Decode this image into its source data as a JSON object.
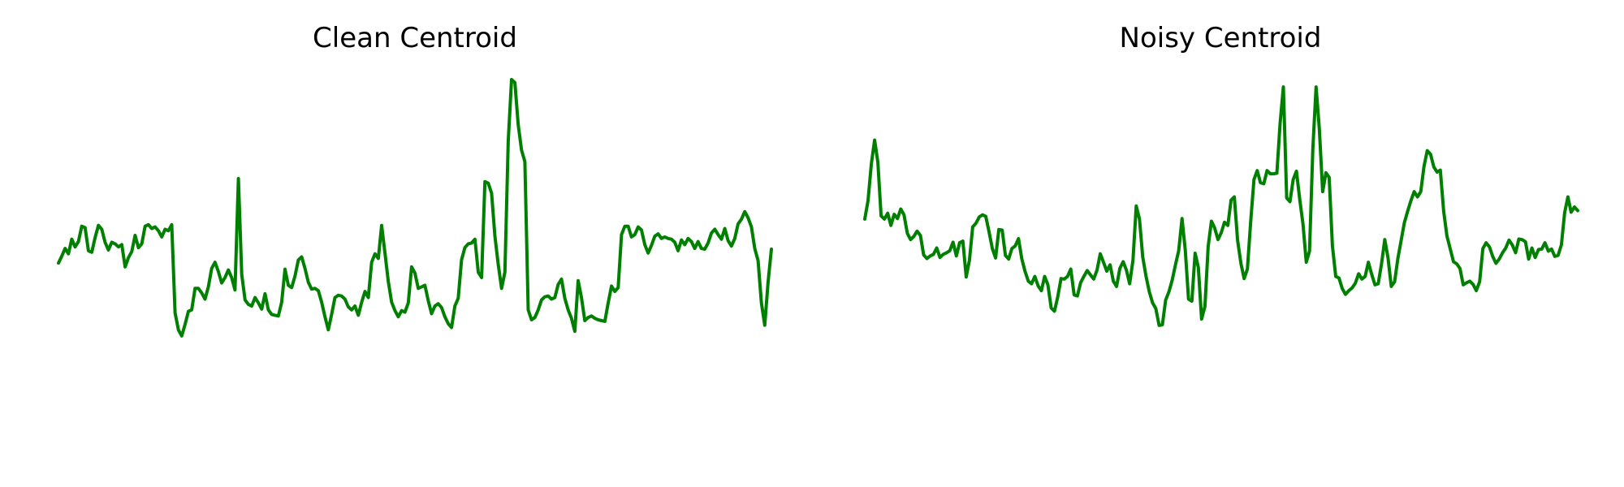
{
  "chart_data": [
    {
      "type": "line",
      "title": "Clean Centroid",
      "xlabel": "",
      "ylabel": "",
      "axes_visible": false,
      "grid": false,
      "color": "#008000",
      "ylim": [
        -0.29,
        0.19
      ],
      "series": [
        {
          "values": [
            -0.049,
            -0.04,
            -0.03,
            -0.037,
            -0.018,
            -0.028,
            -0.021,
            -0.001,
            -0.003,
            -0.033,
            -0.035,
            -0.016,
            0.0,
            -0.005,
            -0.022,
            -0.032,
            -0.022,
            -0.024,
            -0.028,
            -0.025,
            -0.054,
            -0.042,
            -0.034,
            -0.013,
            -0.029,
            -0.024,
            -0.001,
            0.001,
            -0.004,
            -0.002,
            -0.007,
            -0.015,
            -0.005,
            -0.007,
            0.001,
            -0.114,
            -0.136,
            -0.144,
            -0.129,
            -0.112,
            -0.11,
            -0.082,
            -0.082,
            -0.088,
            -0.096,
            -0.08,
            -0.056,
            -0.048,
            -0.06,
            -0.075,
            -0.068,
            -0.058,
            -0.068,
            -0.084,
            0.061,
            -0.064,
            -0.097,
            -0.103,
            -0.105,
            -0.094,
            -0.101,
            -0.109,
            -0.089,
            -0.11,
            -0.116,
            -0.117,
            -0.118,
            -0.1,
            -0.057,
            -0.078,
            -0.081,
            -0.066,
            -0.045,
            -0.041,
            -0.056,
            -0.074,
            -0.083,
            -0.082,
            -0.085,
            -0.1,
            -0.119,
            -0.136,
            -0.116,
            -0.094,
            -0.091,
            -0.092,
            -0.096,
            -0.106,
            -0.11,
            -0.105,
            -0.117,
            -0.1,
            -0.086,
            -0.094,
            -0.048,
            -0.037,
            -0.043,
            0.0,
            -0.036,
            -0.073,
            -0.1,
            -0.111,
            -0.119,
            -0.111,
            -0.113,
            -0.101,
            -0.054,
            -0.062,
            -0.082,
            -0.08,
            -0.078,
            -0.098,
            -0.115,
            -0.105,
            -0.102,
            -0.107,
            -0.119,
            -0.128,
            -0.133,
            -0.105,
            -0.095,
            -0.045,
            -0.029,
            -0.024,
            -0.023,
            -0.018,
            -0.061,
            -0.068,
            0.057,
            0.055,
            0.042,
            -0.014,
            -0.051,
            -0.082,
            -0.061,
            0.11,
            0.19,
            0.186,
            0.131,
            0.098,
            0.083,
            -0.11,
            -0.123,
            -0.12,
            -0.11,
            -0.097,
            -0.093,
            -0.092,
            -0.096,
            -0.094,
            -0.077,
            -0.07,
            -0.095,
            -0.11,
            -0.121,
            -0.138,
            -0.072,
            -0.094,
            -0.124,
            -0.12,
            -0.118,
            -0.121,
            -0.123,
            -0.124,
            -0.125,
            -0.101,
            -0.079,
            -0.086,
            -0.081,
            -0.012,
            -0.001,
            -0.001,
            -0.015,
            -0.012,
            -0.002,
            -0.006,
            -0.025,
            -0.036,
            -0.026,
            -0.014,
            -0.011,
            -0.017,
            -0.015,
            -0.017,
            -0.018,
            -0.022,
            -0.033,
            -0.019,
            -0.025,
            -0.017,
            -0.021,
            -0.03,
            -0.021,
            -0.03,
            -0.031,
            -0.023,
            -0.01,
            -0.005,
            -0.012,
            -0.018,
            -0.004,
            -0.02,
            -0.027,
            -0.017,
            0.002,
            0.008,
            0.018,
            0.01,
            -0.002,
            -0.03,
            -0.046,
            -0.101,
            -0.13,
            -0.074,
            -0.031
          ]
        }
      ]
    },
    {
      "type": "line",
      "title": "Noisy Centroid",
      "xlabel": "",
      "ylabel": "",
      "axes_visible": false,
      "grid": false,
      "color": "#008000",
      "ylim": [
        -0.4,
        0.3
      ],
      "series": [
        {
          "values": [
            0.035,
            0.07,
            0.14,
            0.185,
            0.143,
            0.041,
            0.035,
            0.046,
            0.023,
            0.044,
            0.036,
            0.054,
            0.043,
            0.008,
            -0.004,
            0.002,
            0.012,
            0.004,
            -0.033,
            -0.04,
            -0.035,
            -0.032,
            -0.02,
            -0.038,
            -0.032,
            -0.029,
            -0.025,
            -0.009,
            -0.035,
            -0.01,
            -0.007,
            -0.075,
            -0.043,
            0.02,
            0.027,
            0.039,
            0.043,
            0.04,
            0.011,
            -0.021,
            -0.039,
            0.015,
            0.014,
            -0.034,
            -0.041,
            -0.021,
            -0.016,
            -0.002,
            -0.04,
            -0.064,
            -0.083,
            -0.088,
            -0.074,
            -0.092,
            -0.101,
            -0.074,
            -0.09,
            -0.134,
            -0.14,
            -0.113,
            -0.078,
            -0.079,
            -0.074,
            -0.06,
            -0.109,
            -0.111,
            -0.086,
            -0.074,
            -0.063,
            -0.071,
            -0.079,
            -0.062,
            -0.031,
            -0.047,
            -0.064,
            -0.052,
            -0.083,
            -0.093,
            -0.059,
            -0.046,
            -0.062,
            -0.088,
            -0.043,
            0.06,
            0.035,
            -0.037,
            -0.074,
            -0.103,
            -0.124,
            -0.135,
            -0.167,
            -0.166,
            -0.119,
            -0.103,
            -0.081,
            -0.052,
            -0.025,
            0.036,
            -0.024,
            -0.117,
            -0.121,
            -0.03,
            -0.057,
            -0.155,
            -0.131,
            -0.017,
            0.031,
            0.018,
            -0.004,
            0.009,
            0.029,
            0.023,
            0.071,
            0.077,
            -0.005,
            -0.049,
            -0.078,
            -0.06,
            0.029,
            0.11,
            0.127,
            0.104,
            0.102,
            0.127,
            0.121,
            0.121,
            0.122,
            0.217,
            0.286,
            0.075,
            0.068,
            0.11,
            0.126,
            0.072,
            0.025,
            -0.047,
            -0.026,
            0.168,
            0.286,
            0.206,
            0.087,
            0.123,
            0.114,
            -0.016,
            -0.074,
            -0.077,
            -0.097,
            -0.108,
            -0.101,
            -0.096,
            -0.087,
            -0.069,
            -0.079,
            -0.074,
            -0.047,
            -0.07,
            -0.09,
            -0.088,
            -0.051,
            -0.004,
            -0.039,
            -0.093,
            -0.084,
            -0.04,
            -0.006,
            0.028,
            0.05,
            0.07,
            0.087,
            0.077,
            0.087,
            0.135,
            0.165,
            0.158,
            0.134,
            0.124,
            0.128,
            0.05,
            0.003,
            -0.021,
            -0.046,
            -0.05,
            -0.059,
            -0.09,
            -0.086,
            -0.083,
            -0.089,
            -0.101,
            -0.084,
            -0.021,
            -0.01,
            -0.018,
            -0.036,
            -0.049,
            -0.041,
            -0.029,
            -0.02,
            -0.005,
            -0.014,
            -0.029,
            -0.003,
            -0.004,
            -0.008,
            -0.041,
            -0.02,
            -0.038,
            -0.023,
            -0.022,
            -0.01,
            -0.026,
            -0.022,
            -0.036,
            -0.034,
            -0.014,
            0.047,
            0.077,
            0.048,
            0.058,
            0.051
          ]
        }
      ]
    }
  ]
}
